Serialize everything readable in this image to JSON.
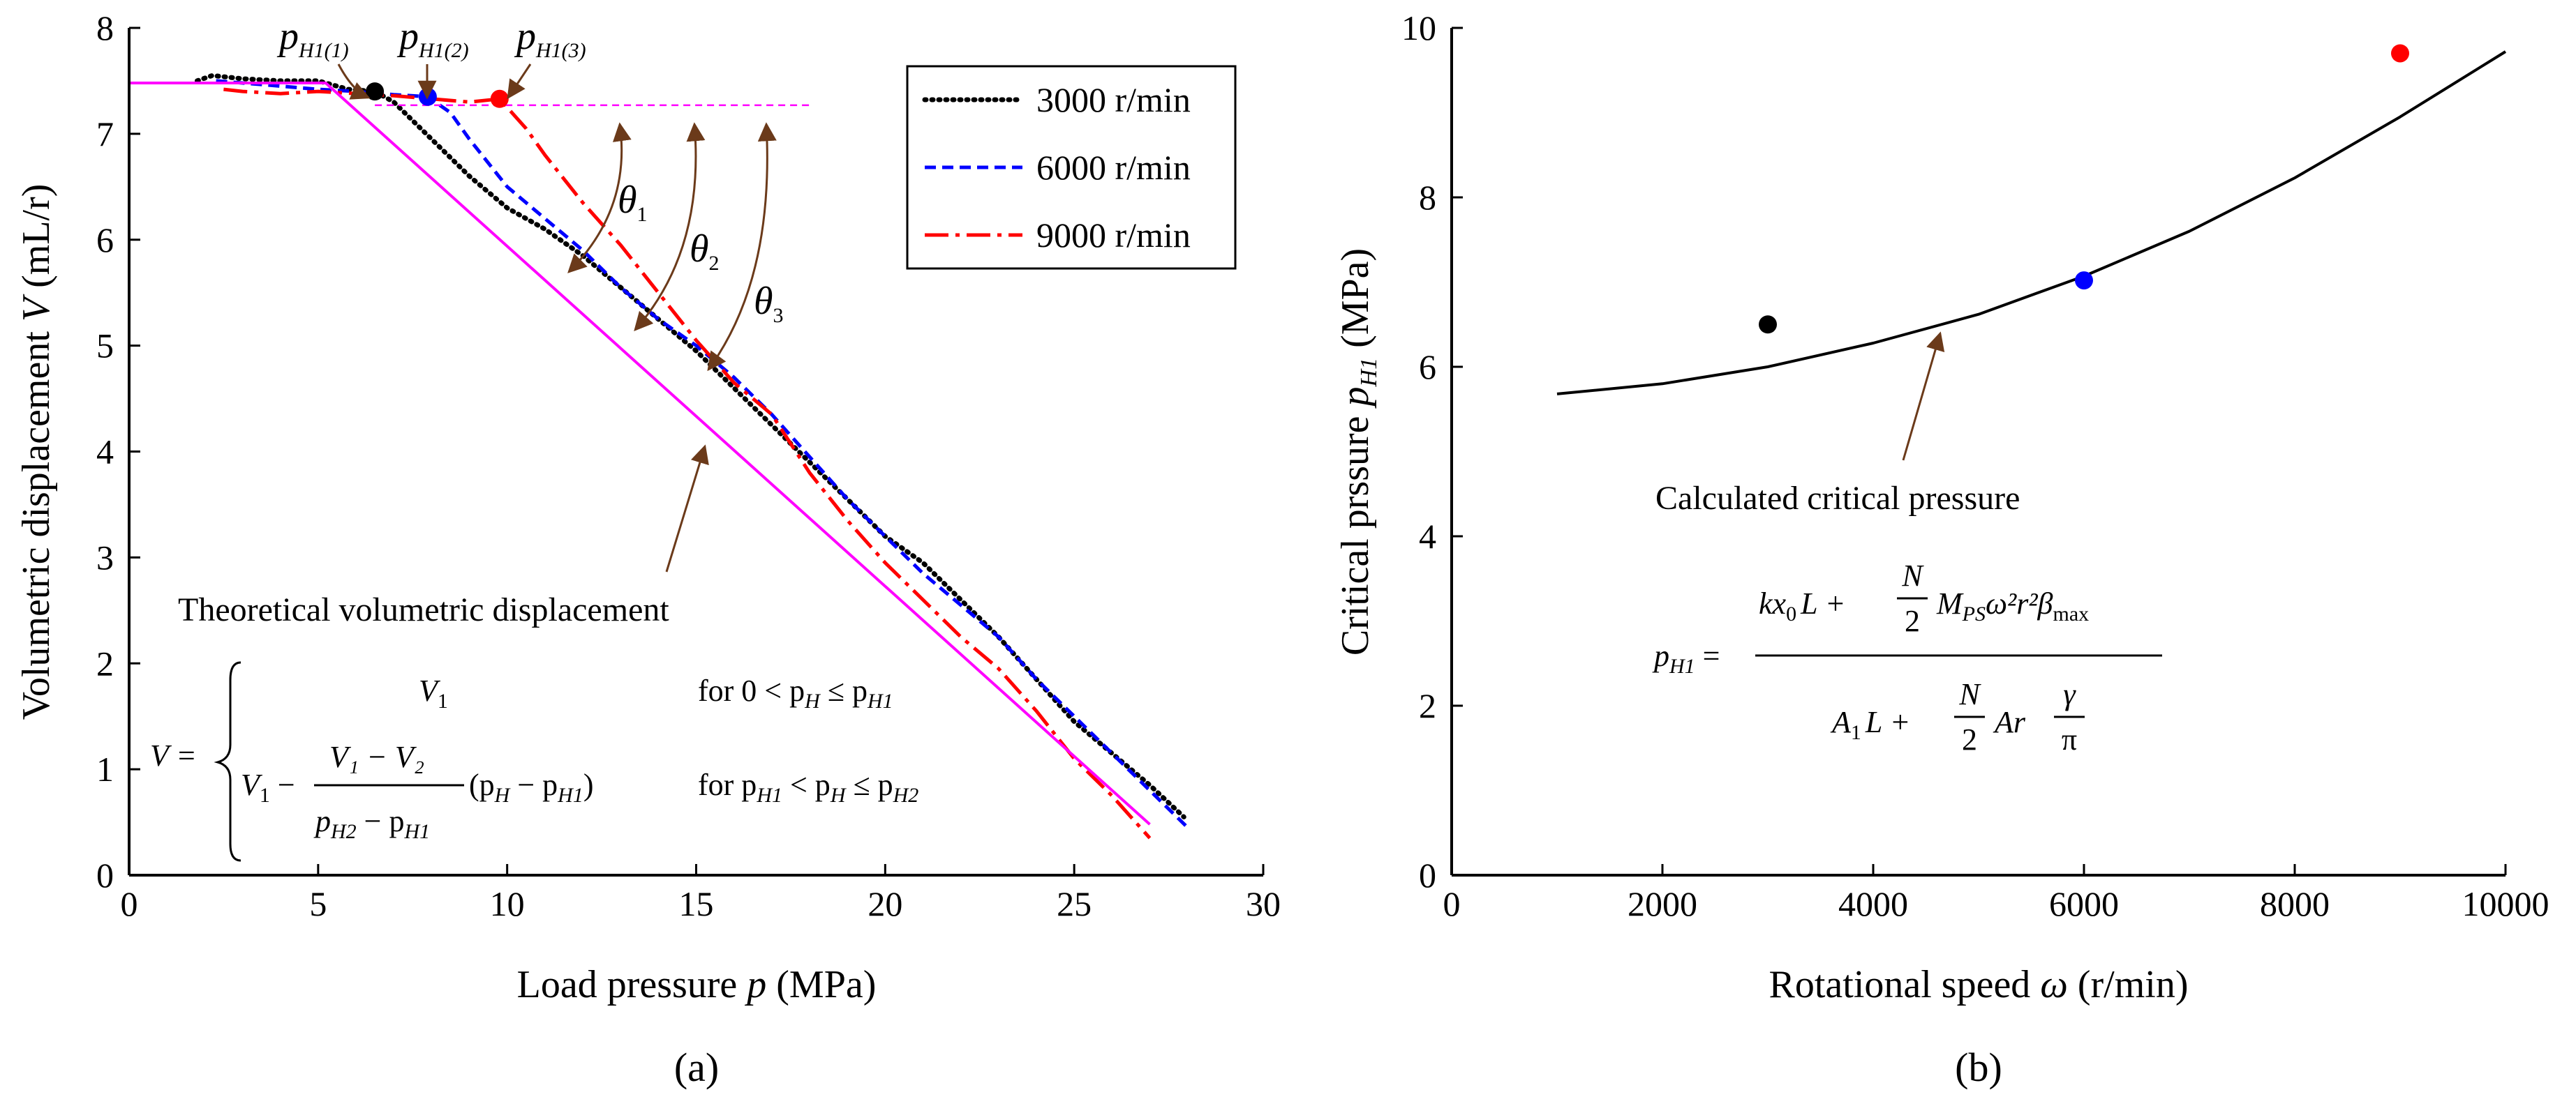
{
  "chart_data": [
    {
      "panel": "(a)",
      "type": "line",
      "xlabel_main": "Load pressure ",
      "xlabel_var": "p",
      "xlabel_unit": " (MPa)",
      "ylabel_main": "Volumetric displacement ",
      "ylabel_var": "V",
      "ylabel_unit": " (mL/r)",
      "xlim": [
        0,
        30
      ],
      "ylim": [
        0,
        8
      ],
      "xticks": [
        "0",
        "5",
        "10",
        "15",
        "20",
        "25",
        "30"
      ],
      "yticks": [
        "0",
        "1",
        "2",
        "3",
        "4",
        "5",
        "6",
        "7",
        "8"
      ],
      "legend": [
        "3000 r/min",
        "6000 r/min",
        "9000 r/min"
      ],
      "series": [
        {
          "name": "3000 r/min",
          "color": "#000000",
          "style": "dotted",
          "x": [
            1.8,
            2.2,
            3.0,
            4.0,
            5.0,
            5.8,
            6.5,
            7.0,
            8.0,
            9.0,
            10.0,
            11.0,
            12.0,
            13.0,
            14.0,
            15.0,
            16.0,
            17.0,
            18.0,
            19.0,
            20.0,
            21.0,
            22.0,
            23.0,
            24.0,
            25.0,
            26.0,
            27.0,
            27.9
          ],
          "y": [
            7.5,
            7.55,
            7.52,
            7.5,
            7.5,
            7.42,
            7.4,
            7.3,
            6.95,
            6.6,
            6.3,
            6.1,
            5.85,
            5.55,
            5.25,
            4.95,
            4.6,
            4.25,
            3.9,
            3.55,
            3.2,
            2.95,
            2.6,
            2.25,
            1.85,
            1.45,
            1.15,
            0.85,
            0.55
          ]
        },
        {
          "name": "6000 r/min",
          "color": "#0000ff",
          "style": "dashed",
          "x": [
            2.3,
            3.0,
            4.0,
            5.0,
            6.0,
            7.0,
            7.9,
            8.5,
            9.0,
            10.0,
            11.0,
            12.0,
            13.0,
            14.0,
            15.0,
            16.0,
            17.0,
            18.0,
            19.0,
            20.0,
            21.0,
            22.0,
            23.0,
            24.0,
            25.0,
            26.0,
            27.0,
            28.0
          ],
          "y": [
            7.5,
            7.48,
            7.45,
            7.42,
            7.4,
            7.37,
            7.35,
            7.2,
            6.95,
            6.5,
            6.2,
            5.9,
            5.55,
            5.25,
            5.0,
            4.7,
            4.35,
            3.95,
            3.55,
            3.2,
            2.85,
            2.55,
            2.25,
            1.85,
            1.5,
            1.15,
            0.8,
            0.45
          ]
        },
        {
          "name": "9000 r/min",
          "color": "#ff0000",
          "style": "dashdot",
          "x": [
            2.5,
            3.0,
            4.0,
            5.0,
            6.0,
            7.0,
            8.0,
            9.0,
            9.8,
            10.5,
            11.0,
            12.0,
            13.0,
            14.0,
            15.0,
            16.0,
            17.0,
            18.0,
            19.0,
            20.0,
            21.0,
            22.0,
            23.0,
            24.0,
            25.0,
            26.0,
            27.0
          ],
          "y": [
            7.42,
            7.4,
            7.38,
            7.4,
            7.38,
            7.36,
            7.33,
            7.3,
            7.33,
            7.05,
            6.8,
            6.35,
            5.95,
            5.5,
            5.05,
            4.65,
            4.35,
            3.8,
            3.35,
            2.95,
            2.6,
            2.25,
            1.95,
            1.55,
            1.1,
            0.75,
            0.35
          ]
        },
        {
          "name": "Theoretical volumetric displacement",
          "color": "#ff00ff",
          "style": "solid",
          "x": [
            0,
            5.2,
            27.0
          ],
          "y": [
            7.48,
            7.48,
            0.48
          ]
        },
        {
          "name": "Horizontal reference",
          "color": "#ff00ff",
          "style": "thin-dashed",
          "x": [
            6.5,
            18.0
          ],
          "y": [
            7.27,
            7.27
          ]
        }
      ],
      "markers": [
        {
          "label": "p_H1(1)",
          "x": 6.5,
          "y": 7.4,
          "color": "#000000"
        },
        {
          "label": "p_H1(2)",
          "x": 7.9,
          "y": 7.35,
          "color": "#0000ff"
        },
        {
          "label": "p_H1(3)",
          "x": 9.8,
          "y": 7.33,
          "color": "#ff0000"
        }
      ],
      "annotations": {
        "pH1_labels": [
          {
            "main": "p",
            "sub": "H1(1)"
          },
          {
            "main": "p",
            "sub": "H1(2)"
          },
          {
            "main": "p",
            "sub": "H1(3)"
          }
        ],
        "theta": [
          {
            "main": "θ",
            "sub": "1"
          },
          {
            "main": "θ",
            "sub": "2"
          },
          {
            "main": "θ",
            "sub": "3"
          }
        ],
        "theoretical_label": "Theoretical volumetric displacement",
        "piecewise": {
          "lhs": "V =",
          "case1_expr": "V",
          "case1_sub": "1",
          "case1_cond": "for  0 < p",
          "case1_cond_sub1": "H",
          "case1_cond_mid": " ≤ p",
          "case1_cond_sub2": "H1",
          "case2_cond": "for  p",
          "case2_cond_sub1": "H1",
          "case2_cond_mid": " < p",
          "case2_cond_sub2": "H",
          "case2_cond_mid2": " ≤ p",
          "case2_cond_sub3": "H2",
          "case2_num": "V₁ − V₂",
          "case2_den": "p",
          "case2_den_sub1": "H2",
          "case2_den_mid": " − p",
          "case2_den_sub2": "H1",
          "case2_lead": "V",
          "case2_lead_sub": "1",
          "case2_lead_op": " −",
          "case2_tail": "(p",
          "case2_tail_sub1": "H",
          "case2_tail_mid": " − p",
          "case2_tail_sub2": "H1",
          "case2_tail_end": ")"
        }
      }
    },
    {
      "panel": "(b)",
      "type": "line",
      "xlabel_main": "Rotational speed ",
      "xlabel_var": "ω",
      "xlabel_unit": " (r/min)",
      "ylabel_main": "Critical prssure ",
      "ylabel_var": "p",
      "ylabel_sub": "H1",
      "ylabel_unit": " (MPa)",
      "xlim": [
        0,
        10000
      ],
      "ylim": [
        0,
        10
      ],
      "xticks": [
        "0",
        "2000",
        "4000",
        "6000",
        "8000",
        "10000"
      ],
      "yticks": [
        "0",
        "2",
        "4",
        "6",
        "8",
        "10"
      ],
      "series": [
        {
          "name": "Calculated critical pressure",
          "color": "#000000",
          "style": "solid",
          "x": [
            1000,
            2000,
            3000,
            4000,
            5000,
            6000,
            7000,
            8000,
            9000,
            10000
          ],
          "y": [
            5.68,
            5.8,
            6.0,
            6.28,
            6.62,
            7.07,
            7.6,
            8.23,
            8.95,
            9.72
          ]
        }
      ],
      "points": [
        {
          "x": 3000,
          "y": 6.5,
          "color": "#000000"
        },
        {
          "x": 6000,
          "y": 7.02,
          "color": "#0000ff"
        },
        {
          "x": 9000,
          "y": 9.7,
          "color": "#ff0000"
        }
      ],
      "annotations": {
        "curve_label": "Calculated critical pressure",
        "formula": {
          "lhs": "p",
          "lhs_sub": "H1",
          "eq": " =",
          "num_a": "kx",
          "num_a_sub": "0",
          "num_b": "L +",
          "num_frac_top": "N",
          "num_frac_bot": "2",
          "num_c": "M",
          "num_c_sub": "PS",
          "num_d": "ω²r²β",
          "num_d_sub": "max",
          "den_a": "A",
          "den_a_sub": "1",
          "den_b": "L +",
          "den_frac_top": "N",
          "den_frac_bot": "2",
          "den_c": "Ar",
          "den_frac2_top": "γ",
          "den_frac2_bot": "π"
        }
      }
    }
  ]
}
